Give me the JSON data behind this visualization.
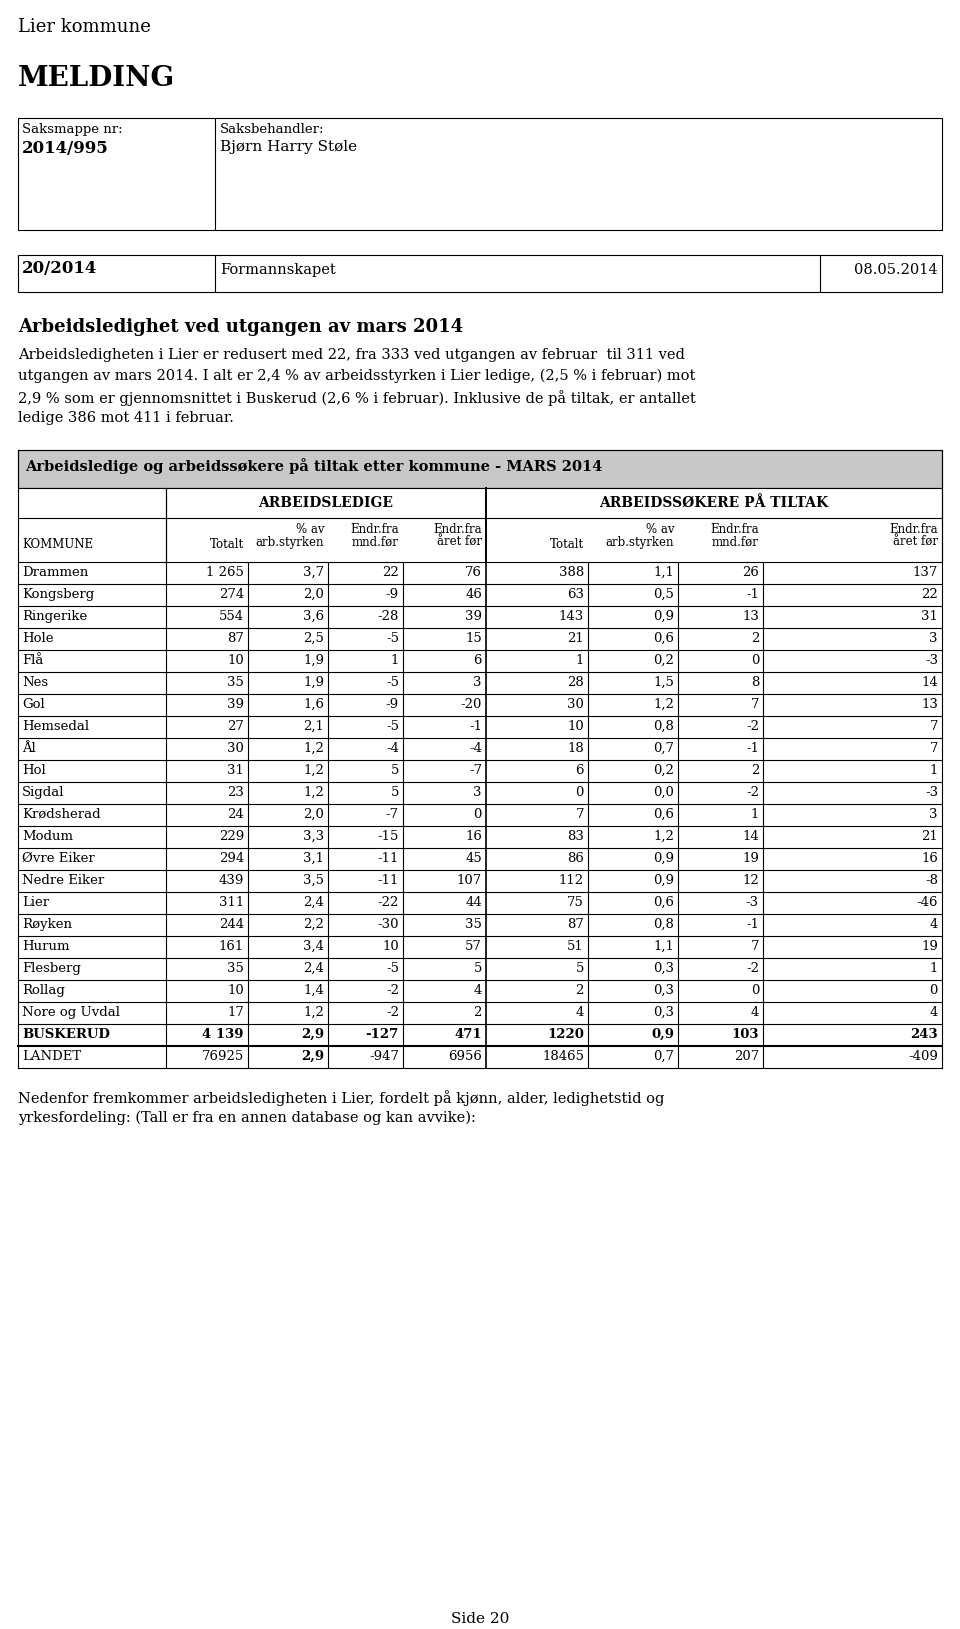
{
  "title_org": "Lier kommune",
  "melding": "MELDING",
  "saksmappe_label": "Saksmappe nr:",
  "saksmappe_val": "2014/995",
  "saksbehandler_label": "Saksbehandler:",
  "saksbehandler_val": "Bjørn Harry Støle",
  "saksnr_label": "20/2014",
  "utvalg_label": "Formannskapet",
  "dato_label": "08.05.2014",
  "heading": "Arbeidsledighet ved utgangen av mars 2014",
  "body_line1": "Arbeidsledigheten i Lier er redusert med 22, fra 333 ved utgangen av februar  til 311 ved",
  "body_line2": "utgangen av mars 2014. I alt er 2,4 % av arbeidsstyrken i Lier ledige, (2,5 % i februar) mot",
  "body_line3": "2,9 % som er gjennomsnittet i Buskerud (2,6 % i februar). Inklusive de på tiltak, er antallet",
  "body_line4": "ledige 386 mot 411 i februar.",
  "table_title": "Arbeidsledige og arbeidssøkere på tiltak etter kommune - MARS 2014",
  "grp1_label": "ARBEIDSLEDIGE",
  "grp2_label": "ARBEIDSSØKERE PÅ TILTAK",
  "col_headers": [
    "KOMMUNE",
    "Totalt",
    "% av\narb.styrken",
    "Endr.fra\nmnd.før",
    "Endr.fra\nåret før",
    "Totalt",
    "% av\narb.styrken",
    "Endr.fra\nmnd.før",
    "Endr.fra\nåret før"
  ],
  "rows": [
    [
      "Drammen",
      "1 265",
      "3,7",
      "22",
      "76",
      "388",
      "1,1",
      "26",
      "137"
    ],
    [
      "Kongsberg",
      "274",
      "2,0",
      "-9",
      "46",
      "63",
      "0,5",
      "-1",
      "22"
    ],
    [
      "Ringerike",
      "554",
      "3,6",
      "-28",
      "39",
      "143",
      "0,9",
      "13",
      "31"
    ],
    [
      "Hole",
      "87",
      "2,5",
      "-5",
      "15",
      "21",
      "0,6",
      "2",
      "3"
    ],
    [
      "Flå",
      "10",
      "1,9",
      "1",
      "6",
      "1",
      "0,2",
      "0",
      "-3"
    ],
    [
      "Nes",
      "35",
      "1,9",
      "-5",
      "3",
      "28",
      "1,5",
      "8",
      "14"
    ],
    [
      "Gol",
      "39",
      "1,6",
      "-9",
      "-20",
      "30",
      "1,2",
      "7",
      "13"
    ],
    [
      "Hemsedal",
      "27",
      "2,1",
      "-5",
      "-1",
      "10",
      "0,8",
      "-2",
      "7"
    ],
    [
      "Ål",
      "30",
      "1,2",
      "-4",
      "-4",
      "18",
      "0,7",
      "-1",
      "7"
    ],
    [
      "Hol",
      "31",
      "1,2",
      "5",
      "-7",
      "6",
      "0,2",
      "2",
      "1"
    ],
    [
      "Sigdal",
      "23",
      "1,2",
      "5",
      "3",
      "0",
      "0,0",
      "-2",
      "-3"
    ],
    [
      "Krødsherad",
      "24",
      "2,0",
      "-7",
      "0",
      "7",
      "0,6",
      "1",
      "3"
    ],
    [
      "Modum",
      "229",
      "3,3",
      "-15",
      "16",
      "83",
      "1,2",
      "14",
      "21"
    ],
    [
      "Øvre Eiker",
      "294",
      "3,1",
      "-11",
      "45",
      "86",
      "0,9",
      "19",
      "16"
    ],
    [
      "Nedre Eiker",
      "439",
      "3,5",
      "-11",
      "107",
      "112",
      "0,9",
      "12",
      "-8"
    ],
    [
      "Lier",
      "311",
      "2,4",
      "-22",
      "44",
      "75",
      "0,6",
      "-3",
      "-46"
    ],
    [
      "Røyken",
      "244",
      "2,2",
      "-30",
      "35",
      "87",
      "0,8",
      "-1",
      "4"
    ],
    [
      "Hurum",
      "161",
      "3,4",
      "10",
      "57",
      "51",
      "1,1",
      "7",
      "19"
    ],
    [
      "Flesberg",
      "35",
      "2,4",
      "-5",
      "5",
      "5",
      "0,3",
      "-2",
      "1"
    ],
    [
      "Rollag",
      "10",
      "1,4",
      "-2",
      "4",
      "2",
      "0,3",
      "0",
      "0"
    ],
    [
      "Nore og Uvdal",
      "17",
      "1,2",
      "-2",
      "2",
      "4",
      "0,3",
      "4",
      "4"
    ]
  ],
  "buskerud_row": [
    "BUSKERUD",
    "4 139",
    "2,9",
    "-127",
    "471",
    "1220",
    "0,9",
    "103",
    "243"
  ],
  "landet_row": [
    "LANDET",
    "76925",
    "2,9",
    "-947",
    "6956",
    "18465",
    "0,7",
    "207",
    "-409"
  ],
  "footer_line1": "Nedenfor fremkommer arbeidsledigheten i Lier, fordelt på kjønn, alder, ledighetstid og",
  "footer_line2": "yrkesfordeling: (Tall er fra en annen database og kan avvike):",
  "page_label": "Side 20",
  "bg_color": "#ffffff",
  "text_color": "#000000",
  "table_header_bg": "#c8c8c8"
}
